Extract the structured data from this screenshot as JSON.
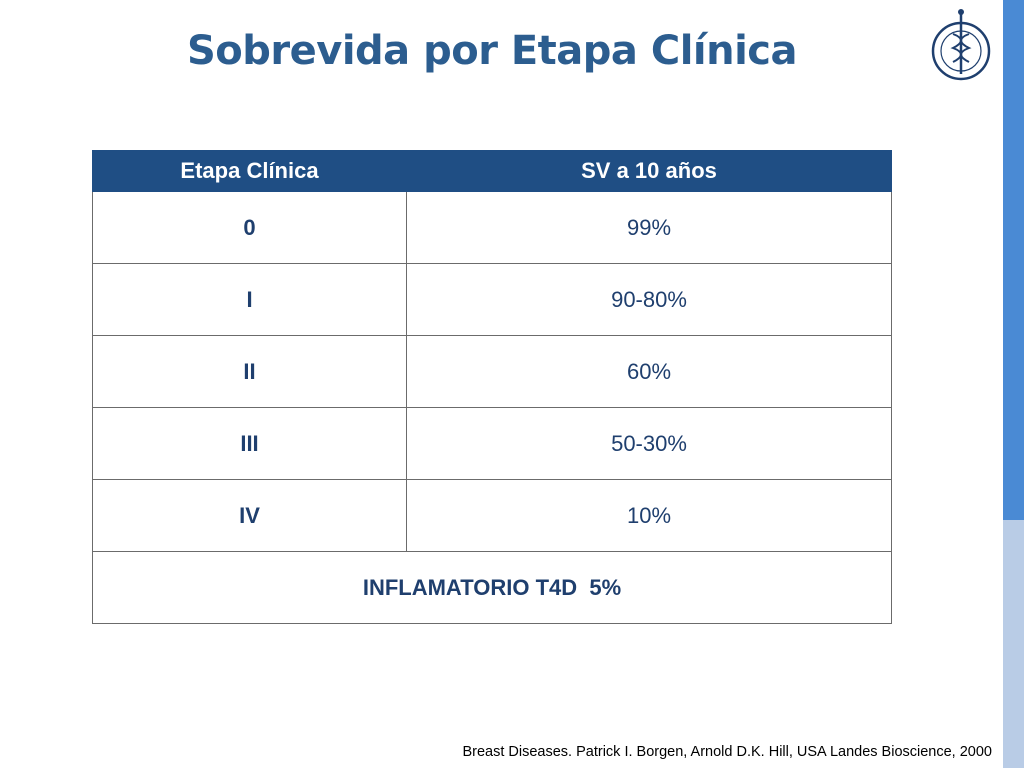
{
  "slide": {
    "title": "Sobrevida por Etapa Clínica",
    "citation": "Breast Diseases. Patrick I. Borgen, Arnold D.K. Hill, USA Landes Bioscience, 2000"
  },
  "table": {
    "headers": [
      "Etapa Clínica",
      "SV a 10 años"
    ],
    "rows": [
      {
        "stage": "0",
        "survival": "99%"
      },
      {
        "stage": "I",
        "survival": "90-80%"
      },
      {
        "stage": "II",
        "survival": "60%"
      },
      {
        "stage": "III",
        "survival": "50-30%"
      },
      {
        "stage": "IV",
        "survival": "10%"
      }
    ],
    "footer": "INFLAMATORIO T4D  5%"
  },
  "colors": {
    "title": "#2c5d8f",
    "header_bg": "#1f4e84",
    "side_bar_top": "#4a8ad4",
    "side_bar_bottom": "#b9cce6"
  },
  "logo": {
    "icon": "institution-seal-icon"
  }
}
